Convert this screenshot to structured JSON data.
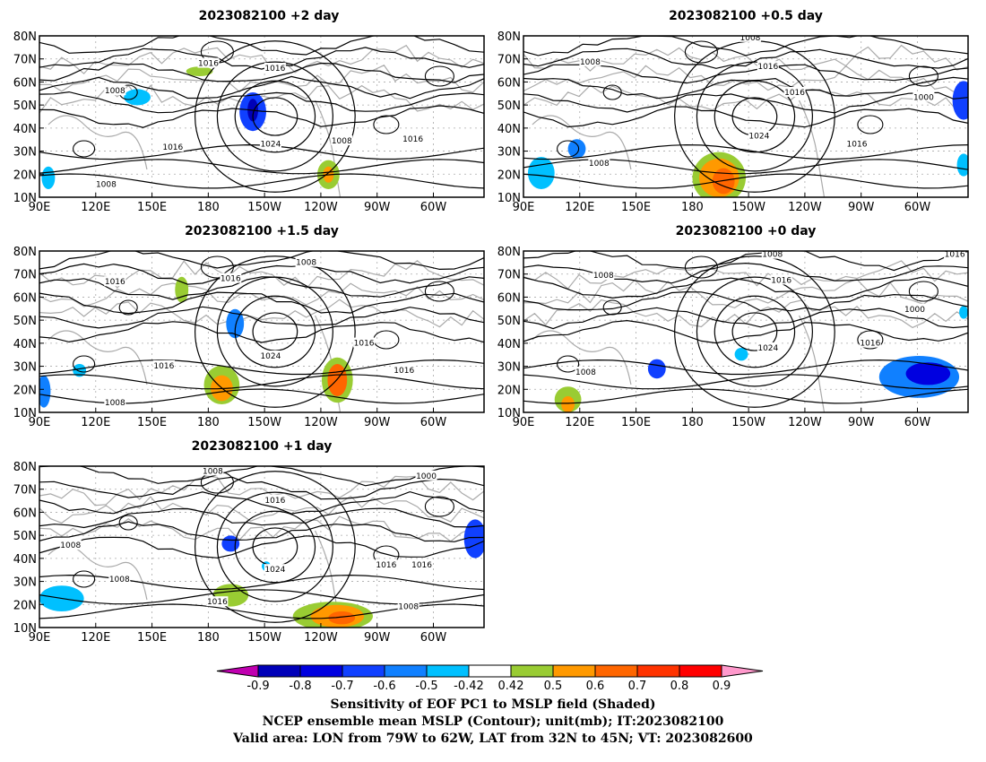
{
  "panels": [
    {
      "title": "2023082100  +2 day",
      "contour_labels": [
        "1016",
        "1016",
        "1008",
        "1016",
        "1024",
        "1008",
        "1016",
        "1008"
      ]
    },
    {
      "title": "2023082100  +0.5 day",
      "contour_labels": [
        "1008",
        "1008",
        "1016",
        "1016",
        "1024",
        "1000",
        "1016",
        "1008"
      ]
    },
    {
      "title": "2023082100  +1.5 day",
      "contour_labels": [
        "1016",
        "1016",
        "1008",
        "1016",
        "1024",
        "1016",
        "1016",
        "1008"
      ]
    },
    {
      "title": "2023082100  +0 day",
      "contour_labels": [
        "1008",
        "1016",
        "1008",
        "1016",
        "1024",
        "1000",
        "1016",
        "1008"
      ]
    },
    {
      "title": "2023082100  +1 day",
      "contour_labels": [
        "1008",
        "1000",
        "1016",
        "1008",
        "1024",
        "1016",
        "1016",
        "1008",
        "1016",
        "1008"
      ]
    }
  ],
  "axes": {
    "lat_ticks": [
      "80N",
      "70N",
      "60N",
      "50N",
      "40N",
      "30N",
      "20N",
      "10N"
    ],
    "lon_ticks": [
      "90E",
      "120E",
      "150E",
      "180",
      "150W",
      "120W",
      "90W",
      "60W"
    ]
  },
  "colorbar": {
    "labels": [
      "-0.9",
      "-0.8",
      "-0.7",
      "-0.6",
      "-0.5",
      "-0.42",
      "0.42",
      "0.5",
      "0.6",
      "0.7",
      "0.8",
      "0.9"
    ],
    "colors": {
      "below": "#c000b0",
      "bins": [
        "#0000b8",
        "#0000e0",
        "#1040ff",
        "#1080ff",
        "#00c0ff",
        "#ffffff",
        "#99cc33",
        "#ff9900",
        "#ff6600",
        "#ff3300",
        "#ff0000"
      ],
      "above": "#ff99cc"
    }
  },
  "caption": {
    "line1": "Sensitivity of EOF PC1 to MSLP field (Shaded)",
    "line2": "NCEP ensemble mean MSLP (Contour); unit(mb); IT:2023082100",
    "line3": "Valid area: LON from 79W to 62W, LAT from 32N to 45N; VT: 2023082600"
  }
}
